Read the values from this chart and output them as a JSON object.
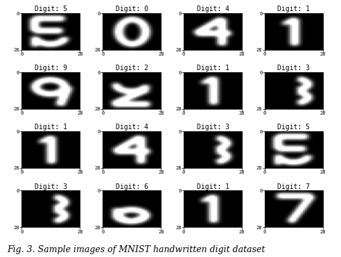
{
  "digits": [
    5,
    0,
    4,
    1,
    9,
    2,
    1,
    3,
    1,
    4,
    3,
    5,
    3,
    6,
    1,
    7
  ],
  "grid_rows": 4,
  "grid_cols": 4,
  "axis_max": 28,
  "caption": "Fig. 3. Sample images of MNIST handwritten digit dataset",
  "caption_fontsize": 9,
  "title_fontsize": 7,
  "tick_fontsize": 5,
  "figsize": [
    4.92,
    3.7
  ],
  "dpi": 100,
  "fig_background": "#ffffff",
  "image_background": "#000000"
}
